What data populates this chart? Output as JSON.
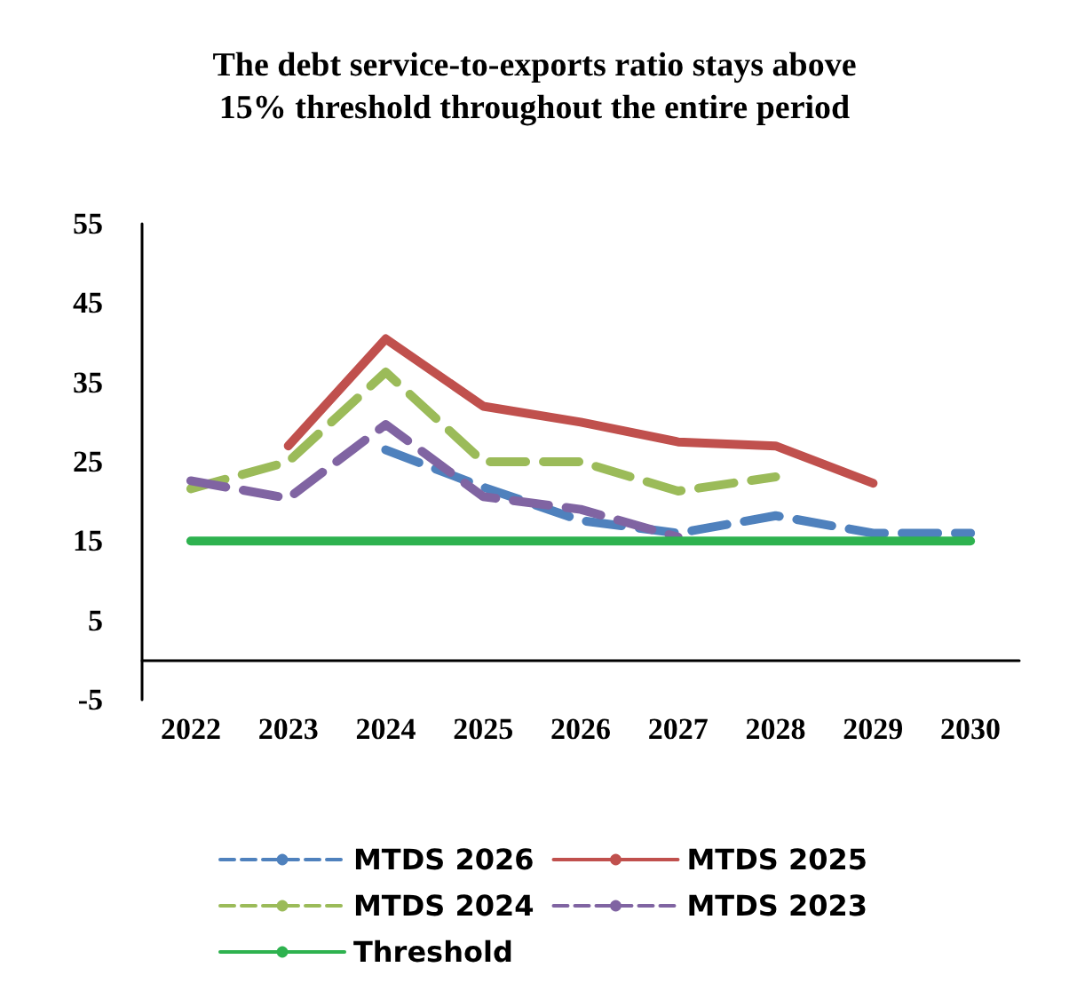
{
  "chart_data": {
    "type": "line",
    "title": "The debt service-to-exports ratio stays above\n15% threshold throughout the entire period",
    "categories": [
      "2022",
      "2023",
      "2024",
      "2025",
      "2026",
      "2027",
      "2028",
      "2029",
      "2030"
    ],
    "series": [
      {
        "name": "MTDS 2026",
        "color": "#4f81bd",
        "line_style": "dashed",
        "values": [
          null,
          null,
          26.5,
          21.8,
          17.6,
          16,
          18.2,
          16,
          16
        ]
      },
      {
        "name": "MTDS 2025",
        "color": "#c0504d",
        "line_style": "solid",
        "values": [
          null,
          27,
          40.5,
          32,
          30,
          27.5,
          27,
          22.3,
          null
        ]
      },
      {
        "name": "MTDS 2024",
        "color": "#9bbb59",
        "line_style": "dashed",
        "values": [
          21.6,
          25,
          36.3,
          25,
          25,
          21.3,
          23.1,
          null,
          null
        ]
      },
      {
        "name": "MTDS 2023",
        "color": "#8064a2",
        "line_style": "dashed",
        "values": [
          22.6,
          20.4,
          29.7,
          20.6,
          19,
          15.5,
          null,
          null,
          null
        ]
      },
      {
        "name": "Threshold",
        "color": "#2eb24f",
        "line_style": "solid",
        "values": [
          15,
          15,
          15,
          15,
          15,
          15,
          15,
          15,
          15
        ]
      }
    ],
    "ylim": [
      -5,
      55
    ],
    "yticks": [
      -5,
      5,
      15,
      25,
      35,
      45,
      55
    ],
    "grid": false,
    "legend": "bottom",
    "marker": "none"
  }
}
